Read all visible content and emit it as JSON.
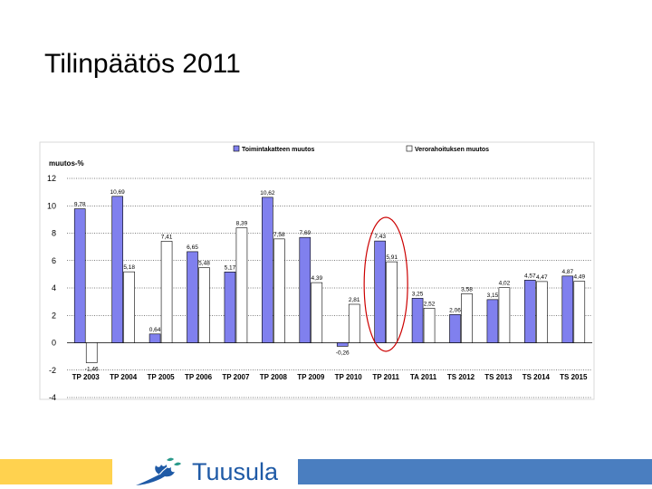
{
  "slide": {
    "title": "Tilinpäätös 2011"
  },
  "brand": {
    "name": "Tuusula",
    "colors": {
      "yellow": "#FFD24F",
      "blue": "#4A7EC0",
      "logo_blue": "#1F5AA6",
      "logo_green": "#2A9A8B"
    }
  },
  "chart_data": {
    "type": "bar",
    "ylabel": "muutos-%",
    "ylim": [
      -4,
      12
    ],
    "yticks": [
      -4,
      -2,
      0,
      2,
      4,
      6,
      8,
      10,
      12
    ],
    "grid": true,
    "legend_position": "top",
    "categories": [
      "TP 2003",
      "TP 2004",
      "TP 2005",
      "TP 2006",
      "TP 2007",
      "TP 2008",
      "TP 2009",
      "TP 2010",
      "TP 2011",
      "TA 2011",
      "TS 2012",
      "TS 2013",
      "TS 2014",
      "TS 2015"
    ],
    "series": [
      {
        "name": "Toimintakatteen muutos",
        "color": "#8080EE",
        "values": [
          9.78,
          10.69,
          0.64,
          6.65,
          5.17,
          10.62,
          7.69,
          -0.26,
          7.43,
          3.25,
          2.06,
          3.15,
          4.57,
          4.87
        ],
        "labels": [
          "9,78",
          "10,69",
          "0,64",
          "6,65",
          "5,17",
          "10,62",
          "7,69",
          "-0,26",
          "7,43",
          "3,25",
          "2,06",
          "3,15",
          "4,57",
          "4,87"
        ]
      },
      {
        "name": "Verorahoituksen muutos",
        "color": "#FFFFFF",
        "values": [
          -1.46,
          5.18,
          7.41,
          5.48,
          8.39,
          7.58,
          4.39,
          2.81,
          5.91,
          2.52,
          3.58,
          4.02,
          4.47,
          4.49
        ],
        "labels": [
          "-1,46",
          "5,18",
          "7,41",
          "5,48",
          "8,39",
          "7,58",
          "4,39",
          "2,81",
          "5,91",
          "2,52",
          "3,58",
          "4,02",
          "4,47",
          "4,49"
        ]
      }
    ],
    "annotation": {
      "type": "ellipse",
      "target_category": "TP 2011",
      "color": "#CC0000"
    }
  }
}
